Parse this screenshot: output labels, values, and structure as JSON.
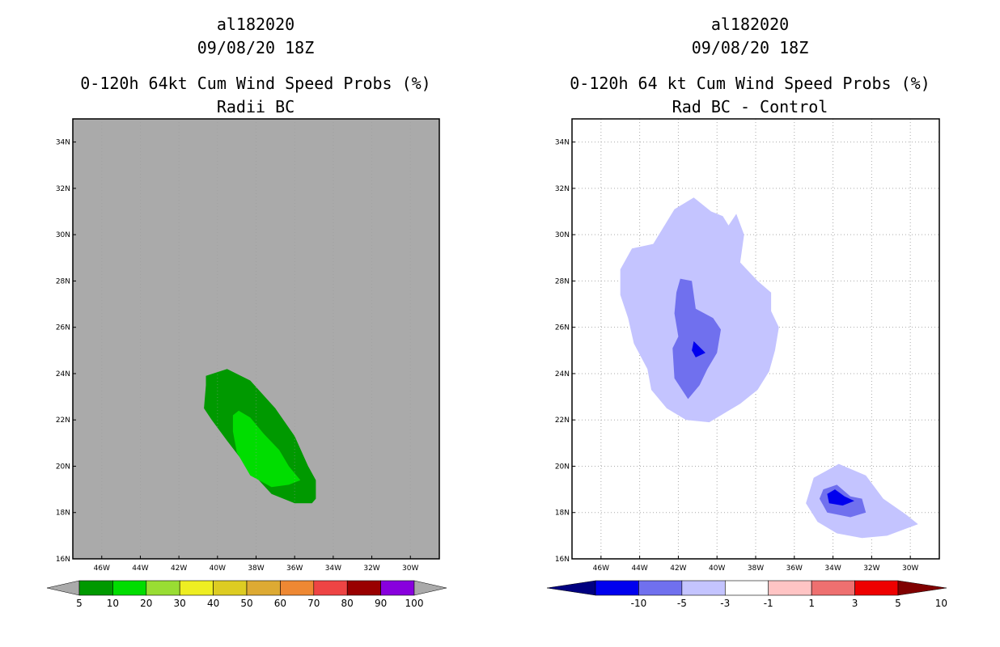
{
  "chart_data": [
    {
      "type": "heatmap",
      "storm_id": "al182020",
      "date": "09/08/20 18Z",
      "title": "0-120h 64kt Cum Wind Speed Probs (%)",
      "subtitle": "Radii BC",
      "x_ticks": [
        "46W",
        "44W",
        "42W",
        "40W",
        "38W",
        "36W",
        "34W",
        "32W",
        "30W"
      ],
      "y_ticks": [
        "34N",
        "32N",
        "30N",
        "28N",
        "26N",
        "24N",
        "22N",
        "20N",
        "18N",
        "16N"
      ],
      "xlim": [
        -47.5,
        -28.5
      ],
      "ylim": [
        16,
        35
      ],
      "grid": false,
      "background_color": "#aaaaaa",
      "colorbar": {
        "labels": [
          "5",
          "10",
          "20",
          "30",
          "40",
          "50",
          "60",
          "70",
          "80",
          "90",
          "100"
        ],
        "colors": [
          "#009900",
          "#00dd00",
          "#99dd33",
          "#eeee22",
          "#ddcc22",
          "#ddaa33",
          "#ee8833",
          "#ee4444",
          "#990000",
          "#8800dd"
        ],
        "under_color": "#aaaaaa",
        "over_color": "#aaaaaa"
      },
      "contours": [
        {
          "level": "5-10",
          "color": "#009900",
          "points": [
            [
              -40.6,
              23.9
            ],
            [
              -39.5,
              24.2
            ],
            [
              -38.3,
              23.7
            ],
            [
              -37.0,
              22.5
            ],
            [
              -36.0,
              21.3
            ],
            [
              -35.3,
              20.0
            ],
            [
              -34.9,
              19.4
            ],
            [
              -34.9,
              18.6
            ],
            [
              -35.1,
              18.4
            ],
            [
              -36.0,
              18.4
            ],
            [
              -37.2,
              18.8
            ],
            [
              -38.3,
              19.8
            ],
            [
              -39.5,
              21.1
            ],
            [
              -40.3,
              22.0
            ],
            [
              -40.7,
              22.5
            ],
            [
              -40.6,
              23.5
            ]
          ]
        },
        {
          "level": "10-20",
          "color": "#00dd00",
          "points": [
            [
              -38.9,
              22.4
            ],
            [
              -38.3,
              22.1
            ],
            [
              -37.6,
              21.4
            ],
            [
              -36.8,
              20.7
            ],
            [
              -36.3,
              20.0
            ],
            [
              -35.7,
              19.4
            ],
            [
              -36.3,
              19.2
            ],
            [
              -37.2,
              19.1
            ],
            [
              -38.3,
              19.6
            ],
            [
              -39.0,
              20.6
            ],
            [
              -39.2,
              21.5
            ],
            [
              -39.2,
              22.2
            ]
          ]
        }
      ]
    },
    {
      "type": "heatmap",
      "storm_id": "al182020",
      "date": "09/08/20 18Z",
      "title": "0-120h 64 kt Cum Wind Speed Probs (%)",
      "subtitle": "Rad BC - Control",
      "x_ticks": [
        "46W",
        "44W",
        "42W",
        "40W",
        "38W",
        "36W",
        "34W",
        "32W",
        "30W"
      ],
      "y_ticks": [
        "34N",
        "32N",
        "30N",
        "28N",
        "26N",
        "24N",
        "22N",
        "20N",
        "18N",
        "16N"
      ],
      "xlim": [
        -47.5,
        -28.5
      ],
      "ylim": [
        16,
        35
      ],
      "grid": true,
      "background_color": "#ffffff",
      "colorbar": {
        "labels": [
          "-10",
          "-5",
          "-3",
          "-1",
          "1",
          "3",
          "5",
          "10"
        ],
        "colors": [
          "#0000ee",
          "#7070ee",
          "#c4c4ff",
          "#ffffff",
          "#ffc4c4",
          "#ee7070",
          "#ee0000"
        ],
        "under_color": "#000080",
        "over_color": "#800000"
      },
      "contours": [
        {
          "level": "-3 to -1",
          "color": "#c4c4ff",
          "points": [
            [
              -43.3,
              29.6
            ],
            [
              -42.2,
              31.1
            ],
            [
              -41.2,
              31.6
            ],
            [
              -40.3,
              31.0
            ],
            [
              -39.7,
              30.8
            ],
            [
              -39.4,
              30.4
            ],
            [
              -39.0,
              30.9
            ],
            [
              -38.6,
              30.0
            ],
            [
              -38.8,
              28.8
            ],
            [
              -37.9,
              28.0
            ],
            [
              -37.2,
              27.5
            ],
            [
              -37.2,
              26.7
            ],
            [
              -36.8,
              26.0
            ],
            [
              -37.0,
              25.0
            ],
            [
              -37.3,
              24.1
            ],
            [
              -37.9,
              23.3
            ],
            [
              -38.8,
              22.7
            ],
            [
              -39.6,
              22.3
            ],
            [
              -40.4,
              21.9
            ],
            [
              -41.6,
              22.0
            ],
            [
              -42.6,
              22.5
            ],
            [
              -43.4,
              23.3
            ],
            [
              -43.6,
              24.2
            ],
            [
              -44.3,
              25.3
            ],
            [
              -44.6,
              26.4
            ],
            [
              -45.0,
              27.4
            ],
            [
              -45.0,
              28.5
            ],
            [
              -44.4,
              29.4
            ]
          ]
        },
        {
          "level": "-3 to -1",
          "color": "#c4c4ff",
          "points": [
            [
              -33.7,
              20.1
            ],
            [
              -32.3,
              19.6
            ],
            [
              -31.4,
              18.6
            ],
            [
              -30.2,
              17.9
            ],
            [
              -29.6,
              17.5
            ],
            [
              -31.2,
              17.0
            ],
            [
              -32.5,
              16.9
            ],
            [
              -33.8,
              17.1
            ],
            [
              -34.8,
              17.6
            ],
            [
              -35.4,
              18.4
            ],
            [
              -35.0,
              19.5
            ]
          ]
        },
        {
          "level": "-5 to -3",
          "color": "#7070ee",
          "points": [
            [
              -41.9,
              28.1
            ],
            [
              -41.3,
              28.0
            ],
            [
              -41.1,
              26.8
            ],
            [
              -40.2,
              26.4
            ],
            [
              -39.8,
              25.9
            ],
            [
              -40.0,
              24.9
            ],
            [
              -40.5,
              24.2
            ],
            [
              -40.9,
              23.5
            ],
            [
              -41.5,
              22.9
            ],
            [
              -42.2,
              23.8
            ],
            [
              -42.3,
              25.1
            ],
            [
              -42.0,
              25.6
            ],
            [
              -42.2,
              26.6
            ],
            [
              -42.1,
              27.5
            ]
          ]
        },
        {
          "level": "-5 to -3",
          "color": "#7070ee",
          "points": [
            [
              -33.8,
              19.2
            ],
            [
              -33.1,
              18.7
            ],
            [
              -32.5,
              18.6
            ],
            [
              -32.3,
              18.0
            ],
            [
              -33.1,
              17.8
            ],
            [
              -34.3,
              18.0
            ],
            [
              -34.7,
              18.6
            ],
            [
              -34.5,
              19.0
            ]
          ]
        },
        {
          "level": "-10 to -5",
          "color": "#0000ee",
          "points": [
            [
              -41.2,
              25.4
            ],
            [
              -40.6,
              24.9
            ],
            [
              -41.1,
              24.7
            ],
            [
              -41.3,
              25.0
            ]
          ]
        },
        {
          "level": "-10 to -5",
          "color": "#0000ee",
          "points": [
            [
              -33.9,
              19.0
            ],
            [
              -33.4,
              18.7
            ],
            [
              -32.9,
              18.5
            ],
            [
              -33.5,
              18.3
            ],
            [
              -34.2,
              18.4
            ],
            [
              -34.3,
              18.8
            ]
          ]
        }
      ]
    }
  ]
}
